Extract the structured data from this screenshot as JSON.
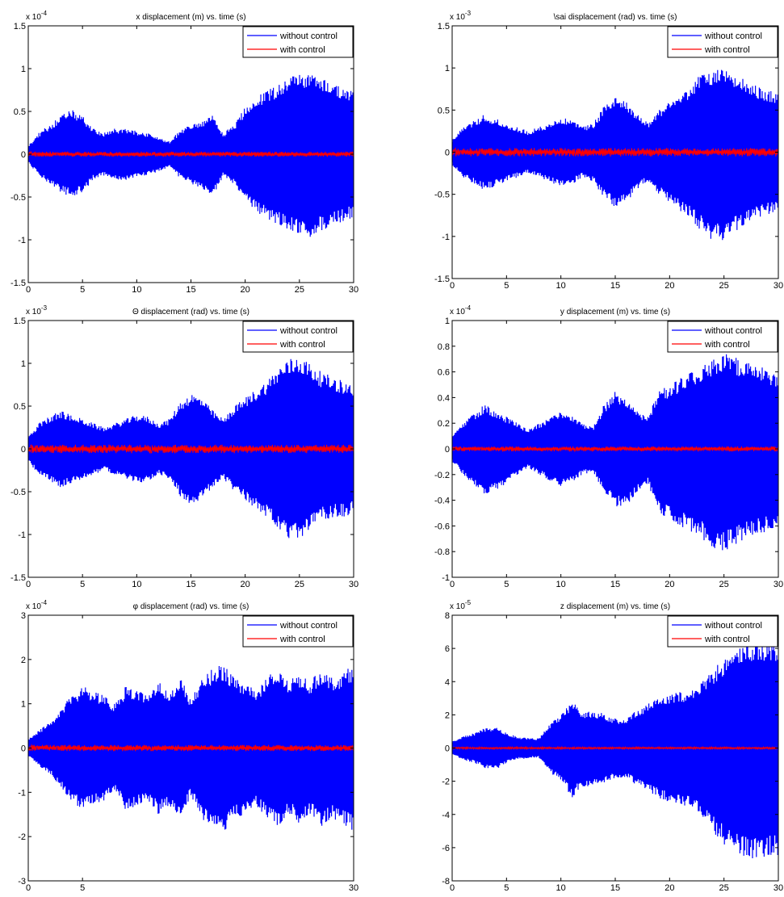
{
  "colors": {
    "without": "#0000ff",
    "with": "#ff0000",
    "axis": "#000000",
    "background": "#ffffff"
  },
  "chart_data": [
    {
      "type": "line",
      "title": "x displacement (m) vs. time (s)",
      "exponent_base": "x 10",
      "exponent_power": "-4",
      "xlim": [
        0,
        30
      ],
      "ylim": [
        -1.5,
        1.5
      ],
      "xticks": [
        0,
        5,
        10,
        15,
        20,
        25,
        30
      ],
      "xtick_labels": [
        "0",
        "5",
        "10",
        "15",
        "20",
        "25",
        "30"
      ],
      "yticks": [
        -1.5,
        -1,
        -0.5,
        0,
        0.5,
        1,
        1.5
      ],
      "ytick_labels": [
        "-1.5",
        "-1",
        "-0.5",
        "0",
        "0.5",
        "1",
        "1.5"
      ],
      "legend": {
        "position": "top-right",
        "entries": [
          "without control",
          "with control"
        ]
      },
      "series": [
        {
          "name": "without control",
          "envelope": {
            "t": [
              0,
              1,
              2,
              3,
              4,
              5,
              6,
              7,
              8,
              9,
              10,
              11,
              12,
              13,
              14,
              15,
              16,
              17,
              18,
              19,
              20,
              21,
              22,
              23,
              24,
              25,
              26,
              27,
              28,
              29,
              30
            ],
            "upper": [
              0.1,
              0.25,
              0.35,
              0.45,
              0.52,
              0.45,
              0.3,
              0.25,
              0.3,
              0.3,
              0.27,
              0.25,
              0.2,
              0.15,
              0.28,
              0.35,
              0.38,
              0.45,
              0.25,
              0.35,
              0.55,
              0.68,
              0.75,
              0.82,
              0.9,
              0.95,
              0.97,
              0.9,
              0.85,
              0.78,
              0.75
            ],
            "lower": [
              -0.1,
              -0.25,
              -0.35,
              -0.45,
              -0.5,
              -0.45,
              -0.3,
              -0.25,
              -0.3,
              -0.3,
              -0.27,
              -0.25,
              -0.2,
              -0.15,
              -0.28,
              -0.35,
              -0.4,
              -0.5,
              -0.25,
              -0.35,
              -0.55,
              -0.68,
              -0.75,
              -0.82,
              -0.9,
              -0.95,
              -0.97,
              -0.9,
              -0.85,
              -0.78,
              -0.75
            ]
          }
        },
        {
          "name": "with control",
          "amplitude": 0.03
        }
      ]
    },
    {
      "type": "line",
      "title": "\\sai displacement (rad) vs. time (s)",
      "exponent_base": "x 10",
      "exponent_power": "-3",
      "xlim": [
        0,
        30
      ],
      "ylim": [
        -1.5,
        1.5
      ],
      "xticks": [
        0,
        5,
        10,
        15,
        20,
        25,
        30
      ],
      "xtick_labels": [
        "0",
        "5",
        "10",
        "15",
        "20",
        "25",
        "30"
      ],
      "yticks": [
        -1.5,
        -1,
        -0.5,
        0,
        0.5,
        1,
        1.5
      ],
      "ytick_labels": [
        "-1.5",
        "-1",
        "-0.5",
        "0",
        "0.5",
        "1",
        "1.5"
      ],
      "legend": {
        "position": "top-right",
        "entries": [
          "without control",
          "with control"
        ]
      },
      "series": [
        {
          "name": "without control",
          "envelope": {
            "t": [
              0,
              1,
              2,
              3,
              4,
              5,
              6,
              7,
              8,
              9,
              10,
              11,
              12,
              13,
              14,
              15,
              16,
              17,
              18,
              19,
              20,
              21,
              22,
              23,
              24,
              25,
              26,
              27,
              28,
              29,
              30
            ],
            "upper": [
              0.15,
              0.3,
              0.38,
              0.45,
              0.4,
              0.35,
              0.3,
              0.25,
              0.3,
              0.35,
              0.42,
              0.38,
              0.3,
              0.35,
              0.55,
              0.65,
              0.6,
              0.45,
              0.35,
              0.5,
              0.6,
              0.7,
              0.8,
              0.95,
              1.0,
              1.05,
              0.95,
              0.85,
              0.8,
              0.75,
              0.7
            ],
            "lower": [
              -0.15,
              -0.3,
              -0.38,
              -0.45,
              -0.4,
              -0.35,
              -0.3,
              -0.25,
              -0.3,
              -0.35,
              -0.42,
              -0.38,
              -0.3,
              -0.35,
              -0.55,
              -0.65,
              -0.6,
              -0.45,
              -0.35,
              -0.5,
              -0.6,
              -0.7,
              -0.8,
              -0.95,
              -1.05,
              -1.05,
              -0.95,
              -0.85,
              -0.8,
              -0.75,
              -0.7
            ]
          }
        },
        {
          "name": "with control",
          "amplitude": 0.05
        }
      ]
    },
    {
      "type": "line",
      "title": "Θ displacement (rad) vs. time (s)",
      "exponent_base": "x 10",
      "exponent_power": "-3",
      "xlim": [
        0,
        30
      ],
      "ylim": [
        -1.5,
        1.5
      ],
      "xticks": [
        0,
        5,
        10,
        15,
        20,
        25,
        30
      ],
      "xtick_labels": [
        "0",
        "5",
        "10",
        "15",
        "20",
        "25",
        "30"
      ],
      "yticks": [
        -1.5,
        -1,
        -0.5,
        0,
        0.5,
        1,
        1.5
      ],
      "ytick_labels": [
        "-1.5",
        "-1",
        "-0.5",
        "0",
        "0.5",
        "1",
        "1.5"
      ],
      "legend": {
        "position": "top-right",
        "entries": [
          "without control",
          "with control"
        ]
      },
      "series": [
        {
          "name": "without control",
          "envelope": {
            "t": [
              0,
              1,
              2,
              3,
              4,
              5,
              6,
              7,
              8,
              9,
              10,
              11,
              12,
              13,
              14,
              15,
              16,
              17,
              18,
              19,
              20,
              21,
              22,
              23,
              24,
              25,
              26,
              27,
              28,
              29,
              30
            ],
            "upper": [
              0.15,
              0.3,
              0.38,
              0.45,
              0.4,
              0.35,
              0.3,
              0.25,
              0.3,
              0.35,
              0.4,
              0.38,
              0.3,
              0.35,
              0.55,
              0.65,
              0.6,
              0.45,
              0.35,
              0.5,
              0.6,
              0.7,
              0.8,
              0.95,
              1.05,
              1.1,
              1.0,
              0.9,
              0.85,
              0.8,
              0.75
            ],
            "lower": [
              -0.15,
              -0.3,
              -0.38,
              -0.45,
              -0.4,
              -0.35,
              -0.3,
              -0.25,
              -0.3,
              -0.35,
              -0.4,
              -0.38,
              -0.3,
              -0.35,
              -0.55,
              -0.65,
              -0.6,
              -0.45,
              -0.35,
              -0.5,
              -0.6,
              -0.7,
              -0.8,
              -0.95,
              -1.1,
              -1.05,
              -0.95,
              -0.85,
              -0.8,
              -0.8,
              -0.75
            ]
          }
        },
        {
          "name": "with control",
          "amplitude": 0.05
        }
      ]
    },
    {
      "type": "line",
      "title": "y displacement (m) vs. time (s)",
      "exponent_base": "x 10",
      "exponent_power": "-4",
      "xlim": [
        0,
        30
      ],
      "ylim": [
        -1,
        1
      ],
      "xticks": [
        0,
        5,
        10,
        15,
        20,
        25,
        30
      ],
      "xtick_labels": [
        "0",
        "5",
        "10",
        "15",
        "20",
        "25",
        "30"
      ],
      "yticks": [
        -1,
        -0.8,
        -0.6,
        -0.4,
        -0.2,
        0,
        0.2,
        0.4,
        0.6,
        0.8,
        1
      ],
      "ytick_labels": [
        "-1",
        "-0.8",
        "-0.6",
        "-0.4",
        "-0.2",
        "0",
        "0.2",
        "0.4",
        "0.6",
        "0.8",
        "1"
      ],
      "legend": {
        "position": "top-right",
        "entries": [
          "without control",
          "with control"
        ]
      },
      "series": [
        {
          "name": "without control",
          "envelope": {
            "t": [
              0,
              1,
              2,
              3,
              4,
              5,
              6,
              7,
              8,
              9,
              10,
              11,
              12,
              13,
              14,
              15,
              16,
              17,
              18,
              19,
              20,
              21,
              22,
              23,
              24,
              25,
              26,
              27,
              28,
              29,
              30
            ],
            "upper": [
              0.1,
              0.2,
              0.28,
              0.35,
              0.3,
              0.25,
              0.2,
              0.15,
              0.2,
              0.25,
              0.3,
              0.26,
              0.2,
              0.18,
              0.35,
              0.45,
              0.4,
              0.3,
              0.25,
              0.45,
              0.5,
              0.55,
              0.6,
              0.65,
              0.72,
              0.75,
              0.72,
              0.68,
              0.65,
              0.62,
              0.6
            ],
            "lower": [
              -0.1,
              -0.2,
              -0.28,
              -0.38,
              -0.32,
              -0.27,
              -0.2,
              -0.15,
              -0.2,
              -0.25,
              -0.3,
              -0.26,
              -0.2,
              -0.18,
              -0.35,
              -0.45,
              -0.45,
              -0.35,
              -0.28,
              -0.5,
              -0.55,
              -0.6,
              -0.65,
              -0.7,
              -0.78,
              -0.8,
              -0.75,
              -0.7,
              -0.68,
              -0.65,
              -0.62
            ]
          }
        },
        {
          "name": "with control",
          "amplitude": 0.02
        }
      ]
    },
    {
      "type": "line",
      "title": "φ displacement (rad) vs. time (s)",
      "exponent_base": "x 10",
      "exponent_power": "-4",
      "xlim": [
        0,
        30
      ],
      "ylim": [
        -3,
        3
      ],
      "xticks": [
        0,
        5,
        30
      ],
      "xtick_labels": [
        "0",
        "5",
        "30"
      ],
      "yticks": [
        -3,
        -2,
        -1,
        0,
        1,
        2,
        3
      ],
      "ytick_labels": [
        "-3",
        "-2",
        "-1",
        "0",
        "1",
        "2",
        "3"
      ],
      "legend": {
        "position": "top-right",
        "entries": [
          "without control",
          "with control"
        ]
      },
      "series": [
        {
          "name": "without control",
          "envelope": {
            "t": [
              0,
              1,
              2,
              3,
              4,
              5,
              6,
              7,
              8,
              9,
              10,
              11,
              12,
              13,
              14,
              15,
              16,
              17,
              18,
              19,
              20,
              21,
              22,
              23,
              24,
              25,
              26,
              27,
              28,
              29,
              30
            ],
            "upper": [
              0.2,
              0.4,
              0.6,
              0.9,
              1.2,
              1.4,
              1.3,
              1.2,
              1.0,
              1.4,
              1.3,
              1.2,
              1.5,
              1.3,
              1.6,
              1.1,
              1.6,
              1.8,
              1.9,
              1.6,
              1.5,
              1.3,
              1.6,
              1.8,
              1.5,
              1.7,
              1.5,
              1.8,
              1.6,
              1.7,
              1.9
            ],
            "lower": [
              -0.2,
              -0.4,
              -0.6,
              -0.9,
              -1.2,
              -1.4,
              -1.3,
              -1.2,
              -1.0,
              -1.4,
              -1.3,
              -1.2,
              -1.5,
              -1.3,
              -1.6,
              -1.1,
              -1.6,
              -1.8,
              -1.9,
              -1.6,
              -1.5,
              -1.3,
              -1.6,
              -1.8,
              -1.5,
              -1.7,
              -1.5,
              -1.8,
              -1.6,
              -1.7,
              -1.9
            ]
          }
        },
        {
          "name": "with control",
          "amplitude": 0.07
        }
      ]
    },
    {
      "type": "line",
      "title": "z displacement (m) vs. time (s)",
      "exponent_base": "x 10",
      "exponent_power": "-5",
      "xlim": [
        0,
        30
      ],
      "ylim": [
        -8,
        8
      ],
      "xticks": [
        0,
        5,
        10,
        15,
        20,
        25,
        30
      ],
      "xtick_labels": [
        "0",
        "5",
        "10",
        "15",
        "20",
        "25",
        "30"
      ],
      "yticks": [
        -8,
        -6,
        -4,
        -2,
        0,
        2,
        4,
        6,
        8
      ],
      "ytick_labels": [
        "-8",
        "-6",
        "-4",
        "-2",
        "0",
        "2",
        "4",
        "6",
        "8"
      ],
      "legend": {
        "position": "top-right",
        "entries": [
          "without control",
          "with control"
        ]
      },
      "series": [
        {
          "name": "without control",
          "envelope": {
            "t": [
              0,
              1,
              2,
              3,
              4,
              5,
              6,
              7,
              8,
              9,
              10,
              11,
              12,
              13,
              14,
              15,
              16,
              17,
              18,
              19,
              20,
              21,
              22,
              23,
              24,
              25,
              26,
              27,
              28,
              29,
              30
            ],
            "upper": [
              0.4,
              0.7,
              0.9,
              1.2,
              1.3,
              0.9,
              0.7,
              0.6,
              0.6,
              1.5,
              2.0,
              2.9,
              2.2,
              2.3,
              2.1,
              1.8,
              1.8,
              2.3,
              2.7,
              3.0,
              3.3,
              3.4,
              3.5,
              4.0,
              4.8,
              5.4,
              5.9,
              6.3,
              6.6,
              6.5,
              6.5
            ],
            "lower": [
              -0.4,
              -0.7,
              -0.9,
              -1.2,
              -1.3,
              -0.9,
              -0.7,
              -0.6,
              -0.6,
              -1.5,
              -2.0,
              -3.0,
              -2.3,
              -2.3,
              -2.1,
              -1.8,
              -1.8,
              -2.3,
              -2.7,
              -3.0,
              -3.3,
              -3.4,
              -3.6,
              -4.2,
              -5.1,
              -5.8,
              -6.3,
              -6.6,
              -6.8,
              -6.6,
              -6.5
            ]
          }
        },
        {
          "name": "with control",
          "amplitude": 0.06
        }
      ]
    }
  ]
}
